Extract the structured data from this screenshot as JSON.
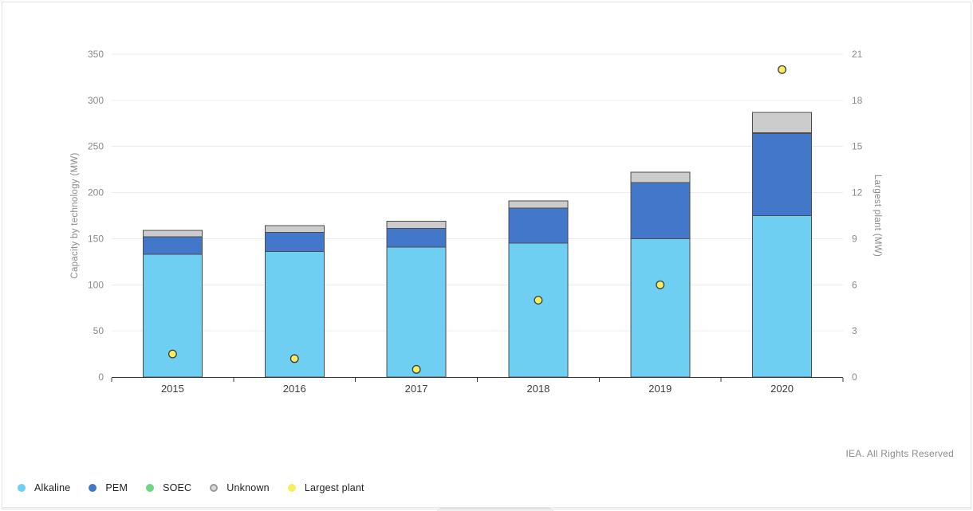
{
  "footer": {
    "copyright": "IEA. All Rights Reserved"
  },
  "chart_data": {
    "type": "bar",
    "subtype": "stacked-columns-with-scatter-overlay",
    "title": "",
    "categories": [
      "2015",
      "2016",
      "2017",
      "2018",
      "2019",
      "2020"
    ],
    "series": [
      {
        "name": "Alkaline",
        "type": "column",
        "axis": "left",
        "color": "#6FCFF2",
        "legend_marker": "dot",
        "values": [
          133,
          136,
          141,
          145,
          150,
          175
        ]
      },
      {
        "name": "PEM",
        "type": "column",
        "axis": "left",
        "color": "#4377C9",
        "legend_marker": "dot",
        "values": [
          19,
          21,
          20,
          38,
          61,
          89
        ]
      },
      {
        "name": "SOEC",
        "type": "column",
        "axis": "left",
        "color": "#6FD77D",
        "legend_marker": "dot",
        "values": [
          0,
          0,
          0,
          0,
          0,
          1
        ]
      },
      {
        "name": "Unknown",
        "type": "column",
        "axis": "left",
        "color": "#CCCCCC",
        "legend_marker": "ring",
        "values": [
          7,
          7,
          8,
          8,
          11,
          22
        ]
      },
      {
        "name": "Largest plant",
        "type": "scatter",
        "axis": "right",
        "color": "#F8EC5F",
        "legend_marker": "dot",
        "values": [
          1.5,
          1.2,
          0.5,
          5,
          6,
          20
        ]
      }
    ],
    "stacked_totals": [
      159,
      164,
      169,
      191,
      222,
      287
    ],
    "left_axis": {
      "label": "Capacity by technology (MW)",
      "min": 0,
      "max": 350,
      "step": 50,
      "ticks": [
        0,
        50,
        100,
        150,
        200,
        250,
        300,
        350
      ]
    },
    "right_axis": {
      "label": "Largest plant (MW)",
      "min": 0,
      "max": 21,
      "step": 3,
      "ticks": [
        0,
        3,
        6,
        9,
        12,
        15,
        18,
        21
      ]
    },
    "grid": true,
    "legend_position": "bottom-left",
    "colors": {
      "bar_stroke": "#4d4d4d",
      "dot_stroke": "#3d3d3d",
      "gridline": "#ebebeb",
      "axis_line": "#383838",
      "tick_label": "#8a8a8a",
      "axis_title": "#8a8a8a",
      "category_label": "#3d3d3d"
    }
  }
}
